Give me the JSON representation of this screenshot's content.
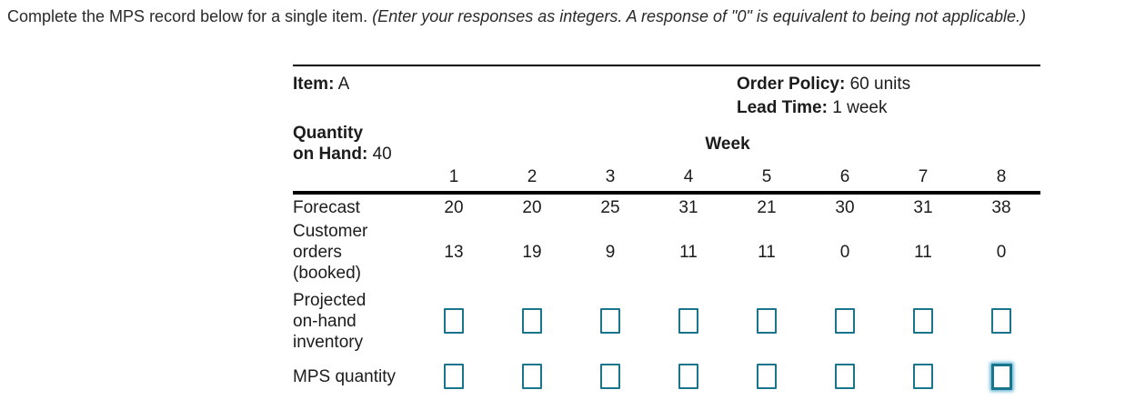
{
  "instruction": {
    "main": "Complete the MPS record below for a single item. ",
    "note": "(Enter your responses as integers. A response of \"0\" is equivalent to being not applicable.)"
  },
  "record": {
    "item_label": "Item:",
    "item_value": "A",
    "order_policy_label": "Order Policy:",
    "order_policy_value": "60 units",
    "lead_time_label": "Lead Time:",
    "lead_time_value": "1 week",
    "qty_on_hand_label_line1": "Quantity",
    "qty_on_hand_label_line2": "on Hand:",
    "qty_on_hand_value": "40",
    "week_header": "Week",
    "weeks": [
      "1",
      "2",
      "3",
      "4",
      "5",
      "6",
      "7",
      "8"
    ],
    "forecast": {
      "label": "Forecast",
      "values": [
        20,
        20,
        25,
        31,
        21,
        30,
        31,
        38
      ]
    },
    "customer_orders": {
      "label_lines": [
        "Customer",
        "orders",
        "(booked)"
      ],
      "values": [
        13,
        19,
        9,
        11,
        11,
        0,
        11,
        0
      ]
    },
    "projected_on_hand": {
      "label_lines": [
        "Projected",
        "on-hand",
        "inventory"
      ],
      "input_values": [
        "",
        "",
        "",
        "",
        "",
        "",
        "",
        ""
      ]
    },
    "mps_quantity": {
      "label": "MPS quantity",
      "input_values": [
        "",
        "",
        "",
        "",
        "",
        "",
        "",
        ""
      ],
      "focused_week": "8"
    }
  },
  "colors": {
    "input_border": "#18758b",
    "focus_glow": "rgba(74,169,205,0.75)"
  }
}
